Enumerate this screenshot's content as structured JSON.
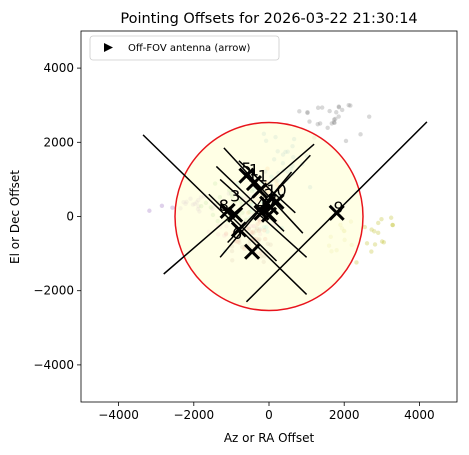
{
  "chart_data": {
    "type": "scatter",
    "title": "Pointing Offsets for 2026-03-22 21:30:14",
    "xlabel": "Az or RA Offset",
    "ylabel": "El or Dec Offset",
    "xlim": [
      -5000,
      5000
    ],
    "ylim": [
      -5000,
      5000
    ],
    "x_ticks": [
      -4000,
      -2000,
      0,
      2000,
      4000
    ],
    "y_ticks": [
      -4000,
      -2000,
      0,
      2000,
      4000
    ],
    "x_tick_labels": [
      "−4000",
      "−2000",
      "0",
      "2000",
      "4000"
    ],
    "y_tick_labels": [
      "−4000",
      "−2000",
      "0",
      "2000",
      "4000"
    ],
    "grid": false,
    "legend": {
      "position": "top-left",
      "entries": [
        {
          "label": "Off-FOV antenna (arrow)",
          "marker": "right-triangle",
          "color": "#000000"
        }
      ]
    },
    "fov_circle": {
      "center": [
        0,
        0
      ],
      "radius": 2500,
      "edge_color": "#e8141c",
      "fill_color": "#ffffdc"
    },
    "antennas": [
      {
        "label": "1",
        "x": -400,
        "y": 1100
      },
      {
        "label": "2",
        "x": 0,
        "y": 450
      },
      {
        "label": "3",
        "x": -900,
        "y": 400
      },
      {
        "label": "4",
        "x": -200,
        "y": 200
      },
      {
        "label": "5",
        "x": -600,
        "y": 1150
      },
      {
        "label": "6",
        "x": -850,
        "y": -600
      },
      {
        "label": "7",
        "x": 100,
        "y": 300
      },
      {
        "label": "8",
        "x": -1200,
        "y": 150
      },
      {
        "label": "9",
        "x": 1850,
        "y": 100
      },
      {
        "label": "10",
        "x": 200,
        "y": 550
      },
      {
        "label": "11",
        "x": -300,
        "y": 950
      }
    ],
    "crosses": [
      {
        "x": -600,
        "y": 1100
      },
      {
        "x": -400,
        "y": 900
      },
      {
        "x": -250,
        "y": 700
      },
      {
        "x": -50,
        "y": 350
      },
      {
        "x": 50,
        "y": 250
      },
      {
        "x": 200,
        "y": 400
      },
      {
        "x": -200,
        "y": 100
      },
      {
        "x": 0,
        "y": 50
      },
      {
        "x": -1100,
        "y": 150
      },
      {
        "x": -900,
        "y": 50
      },
      {
        "x": -800,
        "y": -350
      },
      {
        "x": -450,
        "y": -950
      },
      {
        "x": 1800,
        "y": 100
      }
    ],
    "lines": [
      {
        "from": [
          -3350,
          2200
        ],
        "to": [
          1000,
          -2100
        ]
      },
      {
        "from": [
          -2800,
          -1550
        ],
        "to": [
          1200,
          1950
        ]
      },
      {
        "from": [
          -1200,
          1850
        ],
        "to": [
          900,
          -450
        ]
      },
      {
        "from": [
          -1100,
          -700
        ],
        "to": [
          1100,
          1650
        ]
      },
      {
        "from": [
          -1300,
          -1100
        ],
        "to": [
          600,
          1200
        ]
      },
      {
        "from": [
          -1400,
          1350
        ],
        "to": [
          400,
          -400
        ]
      },
      {
        "from": [
          -800,
          1500
        ],
        "to": [
          700,
          100
        ]
      },
      {
        "from": [
          -1600,
          600
        ],
        "to": [
          200,
          -1200
        ]
      },
      {
        "from": [
          -1300,
          1000
        ],
        "to": [
          1000,
          -1100
        ]
      },
      {
        "from": [
          -600,
          -2300
        ],
        "to": [
          4200,
          2550
        ]
      }
    ],
    "scatter_colors": [
      "#9467bd",
      "#17becf",
      "#bcbd22",
      "#e377c2",
      "#ff7f0e",
      "#2ca02c",
      "#1f77b4",
      "#8c564b",
      "#d62728",
      "#7f7f7f"
    ]
  }
}
